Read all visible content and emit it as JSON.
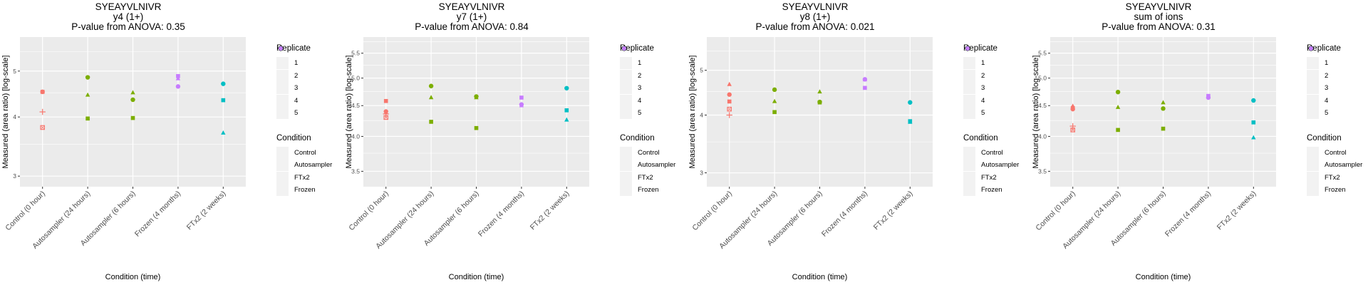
{
  "shared": {
    "xlabel": "Condition (time)",
    "ylabel": "Measured (area ratio) [log-scale]",
    "categories": [
      "Control (0 hour)",
      "Autosampler (24 hours)",
      "Autosampler (6 hours)",
      "Frozen (4 months)",
      "FTx2 (2 weeks)"
    ],
    "legend_replicate": {
      "title": "Replicate",
      "items": [
        "1",
        "2",
        "3",
        "4",
        "5"
      ],
      "shapes": [
        "circle",
        "triangle",
        "square",
        "plus",
        "boxed-x"
      ]
    },
    "legend_condition": {
      "title": "Condition",
      "items": [
        "Control",
        "Autosampler",
        "FTx2",
        "Frozen"
      ],
      "colors": [
        "#F8766D",
        "#7CAE00",
        "#00BFC4",
        "#C77CFF"
      ]
    },
    "condition_of_category": [
      "Control",
      "Autosampler",
      "Autosampler",
      "Frozen",
      "FTx2"
    ]
  },
  "chart_data": [
    {
      "type": "scatter",
      "title": "SYEAYVLNIVR",
      "subtitle": "y4 (1+)",
      "pvalue_text": "P-value from ANOVA: 0.35",
      "xlabel": "Condition (time)",
      "ylabel": "Measured (area ratio) [log-scale]",
      "yscale": "log",
      "ylim": [
        2.85,
        5.9
      ],
      "yticks": [
        3,
        4,
        5
      ],
      "ytick_labels": [
        "3",
        "4",
        "5"
      ],
      "grid": true,
      "points": [
        {
          "x": "Control (0 hour)",
          "replicate": 1,
          "y": 4.52
        },
        {
          "x": "Control (0 hour)",
          "replicate": 2,
          "y": 4.52
        },
        {
          "x": "Control (0 hour)",
          "replicate": 3,
          "y": 4.52
        },
        {
          "x": "Control (0 hour)",
          "replicate": 4,
          "y": 4.1
        },
        {
          "x": "Control (0 hour)",
          "replicate": 5,
          "y": 3.8
        },
        {
          "x": "Autosampler (24 hours)",
          "replicate": 1,
          "y": 4.85
        },
        {
          "x": "Autosampler (24 hours)",
          "replicate": 2,
          "y": 4.45
        },
        {
          "x": "Autosampler (24 hours)",
          "replicate": 3,
          "y": 3.97
        },
        {
          "x": "Autosampler (6 hours)",
          "replicate": 2,
          "y": 4.5
        },
        {
          "x": "Autosampler (6 hours)",
          "replicate": 1,
          "y": 4.35
        },
        {
          "x": "Autosampler (6 hours)",
          "replicate": 3,
          "y": 3.98
        },
        {
          "x": "Frozen (4 months)",
          "replicate": 3,
          "y": 4.88
        },
        {
          "x": "Frozen (4 months)",
          "replicate": 2,
          "y": 4.82
        },
        {
          "x": "Frozen (4 months)",
          "replicate": 1,
          "y": 4.64
        },
        {
          "x": "FTx2 (2 weeks)",
          "replicate": 1,
          "y": 4.7
        },
        {
          "x": "FTx2 (2 weeks)",
          "replicate": 3,
          "y": 4.34
        },
        {
          "x": "FTx2 (2 weeks)",
          "replicate": 2,
          "y": 3.7
        }
      ]
    },
    {
      "type": "scatter",
      "title": "SYEAYVLNIVR",
      "subtitle": "y7 (1+)",
      "pvalue_text": "P-value from ANOVA: 0.84",
      "xlabel": "Condition (time)",
      "ylabel": "Measured (area ratio) [log-scale]",
      "yscale": "log",
      "ylim": [
        3.3,
        5.85
      ],
      "yticks": [
        3.5,
        4.0,
        4.5,
        5.0,
        5.5
      ],
      "ytick_labels": [
        "3.5",
        "4.0",
        "4.5",
        "5.0",
        "5.5"
      ],
      "grid": true,
      "points": [
        {
          "x": "Control (0 hour)",
          "replicate": 3,
          "y": 4.58
        },
        {
          "x": "Control (0 hour)",
          "replicate": 1,
          "y": 4.4
        },
        {
          "x": "Control (0 hour)",
          "replicate": 2,
          "y": 4.38
        },
        {
          "x": "Control (0 hour)",
          "replicate": 4,
          "y": 4.36
        },
        {
          "x": "Control (0 hour)",
          "replicate": 5,
          "y": 4.3
        },
        {
          "x": "Autosampler (24 hours)",
          "replicate": 1,
          "y": 4.85
        },
        {
          "x": "Autosampler (24 hours)",
          "replicate": 2,
          "y": 4.64
        },
        {
          "x": "Autosampler (24 hours)",
          "replicate": 3,
          "y": 4.23
        },
        {
          "x": "Autosampler (6 hours)",
          "replicate": 1,
          "y": 4.66
        },
        {
          "x": "Autosampler (6 hours)",
          "replicate": 2,
          "y": 4.64
        },
        {
          "x": "Autosampler (6 hours)",
          "replicate": 3,
          "y": 4.13
        },
        {
          "x": "Frozen (4 months)",
          "replicate": 3,
          "y": 4.64
        },
        {
          "x": "Frozen (4 months)",
          "replicate": 1,
          "y": 4.52
        },
        {
          "x": "Frozen (4 months)",
          "replicate": 2,
          "y": 4.5
        },
        {
          "x": "FTx2 (2 weeks)",
          "replicate": 1,
          "y": 4.81
        },
        {
          "x": "FTx2 (2 weeks)",
          "replicate": 3,
          "y": 4.42
        },
        {
          "x": "FTx2 (2 weeks)",
          "replicate": 2,
          "y": 4.26
        }
      ]
    },
    {
      "type": "scatter",
      "title": "SYEAYVLNIVR",
      "subtitle": "y8 (1+)",
      "pvalue_text": "P-value from ANOVA: 0.021",
      "xlabel": "Condition (time)",
      "ylabel": "Measured (area ratio) [log-scale]",
      "yscale": "log",
      "ylim": [
        2.8,
        5.9
      ],
      "yticks": [
        3,
        4,
        5
      ],
      "ytick_labels": [
        "3",
        "4",
        "5"
      ],
      "grid": true,
      "points": [
        {
          "x": "Control (0 hour)",
          "replicate": 2,
          "y": 4.66
        },
        {
          "x": "Control (0 hour)",
          "replicate": 1,
          "y": 4.43
        },
        {
          "x": "Control (0 hour)",
          "replicate": 3,
          "y": 4.28
        },
        {
          "x": "Control (0 hour)",
          "replicate": 5,
          "y": 4.12
        },
        {
          "x": "Control (0 hour)",
          "replicate": 4,
          "y": 4.0
        },
        {
          "x": "Autosampler (24 hours)",
          "replicate": 1,
          "y": 4.54
        },
        {
          "x": "Autosampler (24 hours)",
          "replicate": 2,
          "y": 4.28
        },
        {
          "x": "Autosampler (24 hours)",
          "replicate": 3,
          "y": 4.06
        },
        {
          "x": "Autosampler (6 hours)",
          "replicate": 2,
          "y": 4.49
        },
        {
          "x": "Autosampler (6 hours)",
          "replicate": 1,
          "y": 4.27
        },
        {
          "x": "Autosampler (6 hours)",
          "replicate": 3,
          "y": 4.26
        },
        {
          "x": "Frozen (4 months)",
          "replicate": 1,
          "y": 4.78
        },
        {
          "x": "Frozen (4 months)",
          "replicate": 2,
          "y": 4.77
        },
        {
          "x": "Frozen (4 months)",
          "replicate": 3,
          "y": 4.58
        },
        {
          "x": "FTx2 (2 weeks)",
          "replicate": 1,
          "y": 4.26
        },
        {
          "x": "FTx2 (2 weeks)",
          "replicate": 3,
          "y": 3.88
        },
        {
          "x": "FTx2 (2 weeks)",
          "replicate": 2,
          "y": 3.86
        }
      ]
    },
    {
      "type": "scatter",
      "title": "SYEAYVLNIVR",
      "subtitle": "sum of ions",
      "pvalue_text": "P-value from ANOVA: 0.31",
      "xlabel": "Condition (time)",
      "ylabel": "Measured (area ratio) [log-scale]",
      "yscale": "log",
      "ylim": [
        3.3,
        5.85
      ],
      "yticks": [
        3.5,
        4.0,
        4.5,
        5.0,
        5.5
      ],
      "ytick_labels": [
        "3.5",
        "4.0",
        "4.5",
        "5.0",
        "5.5"
      ],
      "grid": true,
      "points": [
        {
          "x": "Control (0 hour)",
          "replicate": 2,
          "y": 4.49
        },
        {
          "x": "Control (0 hour)",
          "replicate": 3,
          "y": 4.46
        },
        {
          "x": "Control (0 hour)",
          "replicate": 1,
          "y": 4.44
        },
        {
          "x": "Control (0 hour)",
          "replicate": 4,
          "y": 4.16
        },
        {
          "x": "Control (0 hour)",
          "replicate": 5,
          "y": 4.1
        },
        {
          "x": "Autosampler (24 hours)",
          "replicate": 1,
          "y": 4.74
        },
        {
          "x": "Autosampler (24 hours)",
          "replicate": 2,
          "y": 4.47
        },
        {
          "x": "Autosampler (24 hours)",
          "replicate": 3,
          "y": 4.1
        },
        {
          "x": "Autosampler (6 hours)",
          "replicate": 2,
          "y": 4.55
        },
        {
          "x": "Autosampler (6 hours)",
          "replicate": 1,
          "y": 4.45
        },
        {
          "x": "Autosampler (6 hours)",
          "replicate": 3,
          "y": 4.12
        },
        {
          "x": "Frozen (4 months)",
          "replicate": 3,
          "y": 4.67
        },
        {
          "x": "Frozen (4 months)",
          "replicate": 2,
          "y": 4.65
        },
        {
          "x": "Frozen (4 months)",
          "replicate": 1,
          "y": 4.64
        },
        {
          "x": "FTx2 (2 weeks)",
          "replicate": 1,
          "y": 4.59
        },
        {
          "x": "FTx2 (2 weeks)",
          "replicate": 3,
          "y": 4.22
        },
        {
          "x": "FTx2 (2 weeks)",
          "replicate": 2,
          "y": 3.98
        }
      ]
    }
  ]
}
